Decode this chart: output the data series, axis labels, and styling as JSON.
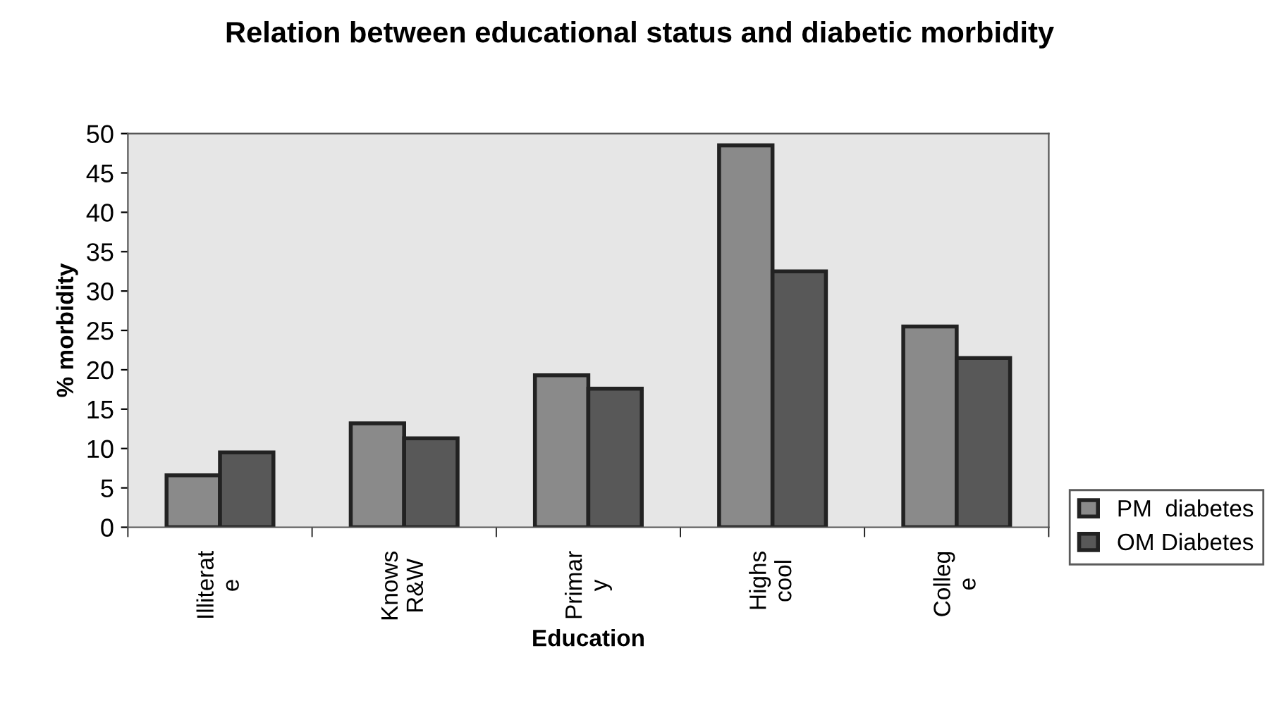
{
  "chart_data": {
    "type": "bar",
    "title": "Relation between educational status and diabetic morbidity",
    "xlabel": "Education",
    "ylabel": "% morbidity",
    "categories": [
      "Illiterat\ne",
      "Knows\nR&W",
      "Primar\ny",
      "Highs\ncool",
      "Colleg\ne"
    ],
    "series": [
      {
        "name": "PM  diabetes",
        "color": "#8a8a8a",
        "values": [
          6.6,
          13.2,
          19.3,
          48.5,
          25.5
        ]
      },
      {
        "name": "OM Diabetes",
        "color": "#585858",
        "values": [
          9.5,
          11.3,
          17.6,
          32.5,
          21.5
        ]
      }
    ],
    "ylim": [
      0,
      50
    ],
    "yticks": [
      0,
      5,
      10,
      15,
      20,
      25,
      30,
      35,
      40,
      45,
      50
    ],
    "grid": false,
    "legend": "right"
  }
}
